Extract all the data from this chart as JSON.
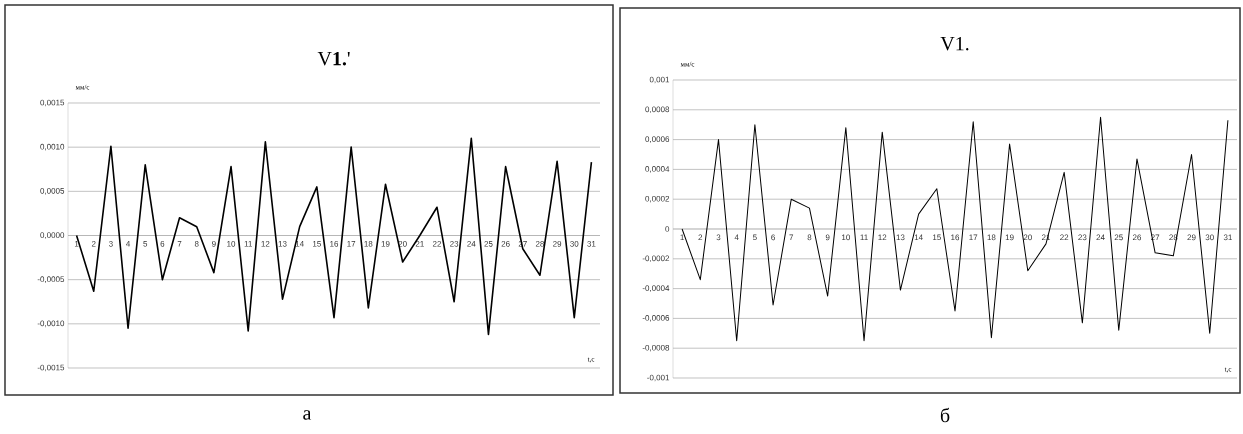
{
  "chart_data": [
    {
      "type": "line",
      "title": "V**1.**'",
      "ylabel": "мм/с",
      "xlabel": "t,c",
      "annotations": [
        "а"
      ],
      "categories": [
        "1",
        "2",
        "3",
        "4",
        "5",
        "6",
        "7",
        "8",
        "9",
        "10",
        "11",
        "12",
        "13",
        "14",
        "15",
        "16",
        "17",
        "18",
        "19",
        "20",
        "21",
        "22",
        "23",
        "24",
        "25",
        "26",
        "27",
        "28",
        "29",
        "30",
        "31"
      ],
      "series": [
        {
          "color": "#000000",
          "values": [
            0,
            -0.00063,
            0.00101,
            -0.00105,
            0.0008,
            -0.0005,
            0.0002,
            0.0001,
            -0.00042,
            0.00078,
            -0.00108,
            0.00106,
            -0.00072,
            0.0001,
            0.00055,
            -0.00093,
            0.001,
            -0.00082,
            0.00058,
            -0.0003,
            0,
            0.00032,
            -0.00075,
            0.0011,
            -0.00112,
            0.00078,
            -0.00015,
            -0.00045,
            0.00084,
            -0.00093,
            0.00083
          ]
        }
      ],
      "ylim": [
        -0.0015,
        0.0015
      ],
      "yticks": [
        {
          "value": -0.0015,
          "label": "-0,0015"
        },
        {
          "value": -0.001,
          "label": "-0,0010"
        },
        {
          "value": -0.0005,
          "label": "-0,0005"
        },
        {
          "value": 0,
          "label": "0,0000"
        },
        {
          "value": 0.0005,
          "label": "0,0005"
        },
        {
          "value": 0.001,
          "label": "0,0010"
        },
        {
          "value": 0.0015,
          "label": "0,0015"
        }
      ],
      "grid": "y",
      "marker": "none",
      "line_style": "solid"
    },
    {
      "type": "line",
      "title": "V1.",
      "ylabel": "мм/с",
      "xlabel": "t,c",
      "annotations": [
        "б"
      ],
      "categories": [
        "1",
        "2",
        "3",
        "4",
        "5",
        "6",
        "7",
        "8",
        "9",
        "10",
        "11",
        "12",
        "13",
        "14",
        "15",
        "16",
        "17",
        "18",
        "19",
        "20",
        "21",
        "22",
        "23",
        "24",
        "25",
        "26",
        "27",
        "28",
        "29",
        "30",
        "31"
      ],
      "series": [
        {
          "color": "#000000",
          "values": [
            0,
            -0.00034,
            0.0006,
            -0.00075,
            0.0007,
            -0.00051,
            0.0002,
            0.00014,
            -0.00045,
            0.00068,
            -0.00075,
            0.00065,
            -0.00041,
            0.0001,
            0.00027,
            -0.00055,
            0.00072,
            -0.00073,
            0.00057,
            -0.00028,
            -0.0001,
            0.00038,
            -0.00063,
            0.00075,
            -0.00068,
            0.00047,
            -0.00016,
            -0.00018,
            0.0005,
            -0.0007,
            0.00073
          ]
        }
      ],
      "ylim": [
        -0.001,
        0.001
      ],
      "yticks": [
        {
          "value": -0.001,
          "label": "-0,001"
        },
        {
          "value": -0.0008,
          "label": "-0,0008"
        },
        {
          "value": -0.0006,
          "label": "-0,0006"
        },
        {
          "value": -0.0004,
          "label": "-0,0004"
        },
        {
          "value": -0.0002,
          "label": "-0,0002"
        },
        {
          "value": 0,
          "label": "0"
        },
        {
          "value": 0.0002,
          "label": "0,0002"
        },
        {
          "value": 0.0004,
          "label": "0,0004"
        },
        {
          "value": 0.0006,
          "label": "0,0006"
        },
        {
          "value": 0.0008,
          "label": "0,0008"
        },
        {
          "value": 0.001,
          "label": "0,001"
        }
      ],
      "grid": "y",
      "marker": "none",
      "line_style": "solid"
    }
  ]
}
